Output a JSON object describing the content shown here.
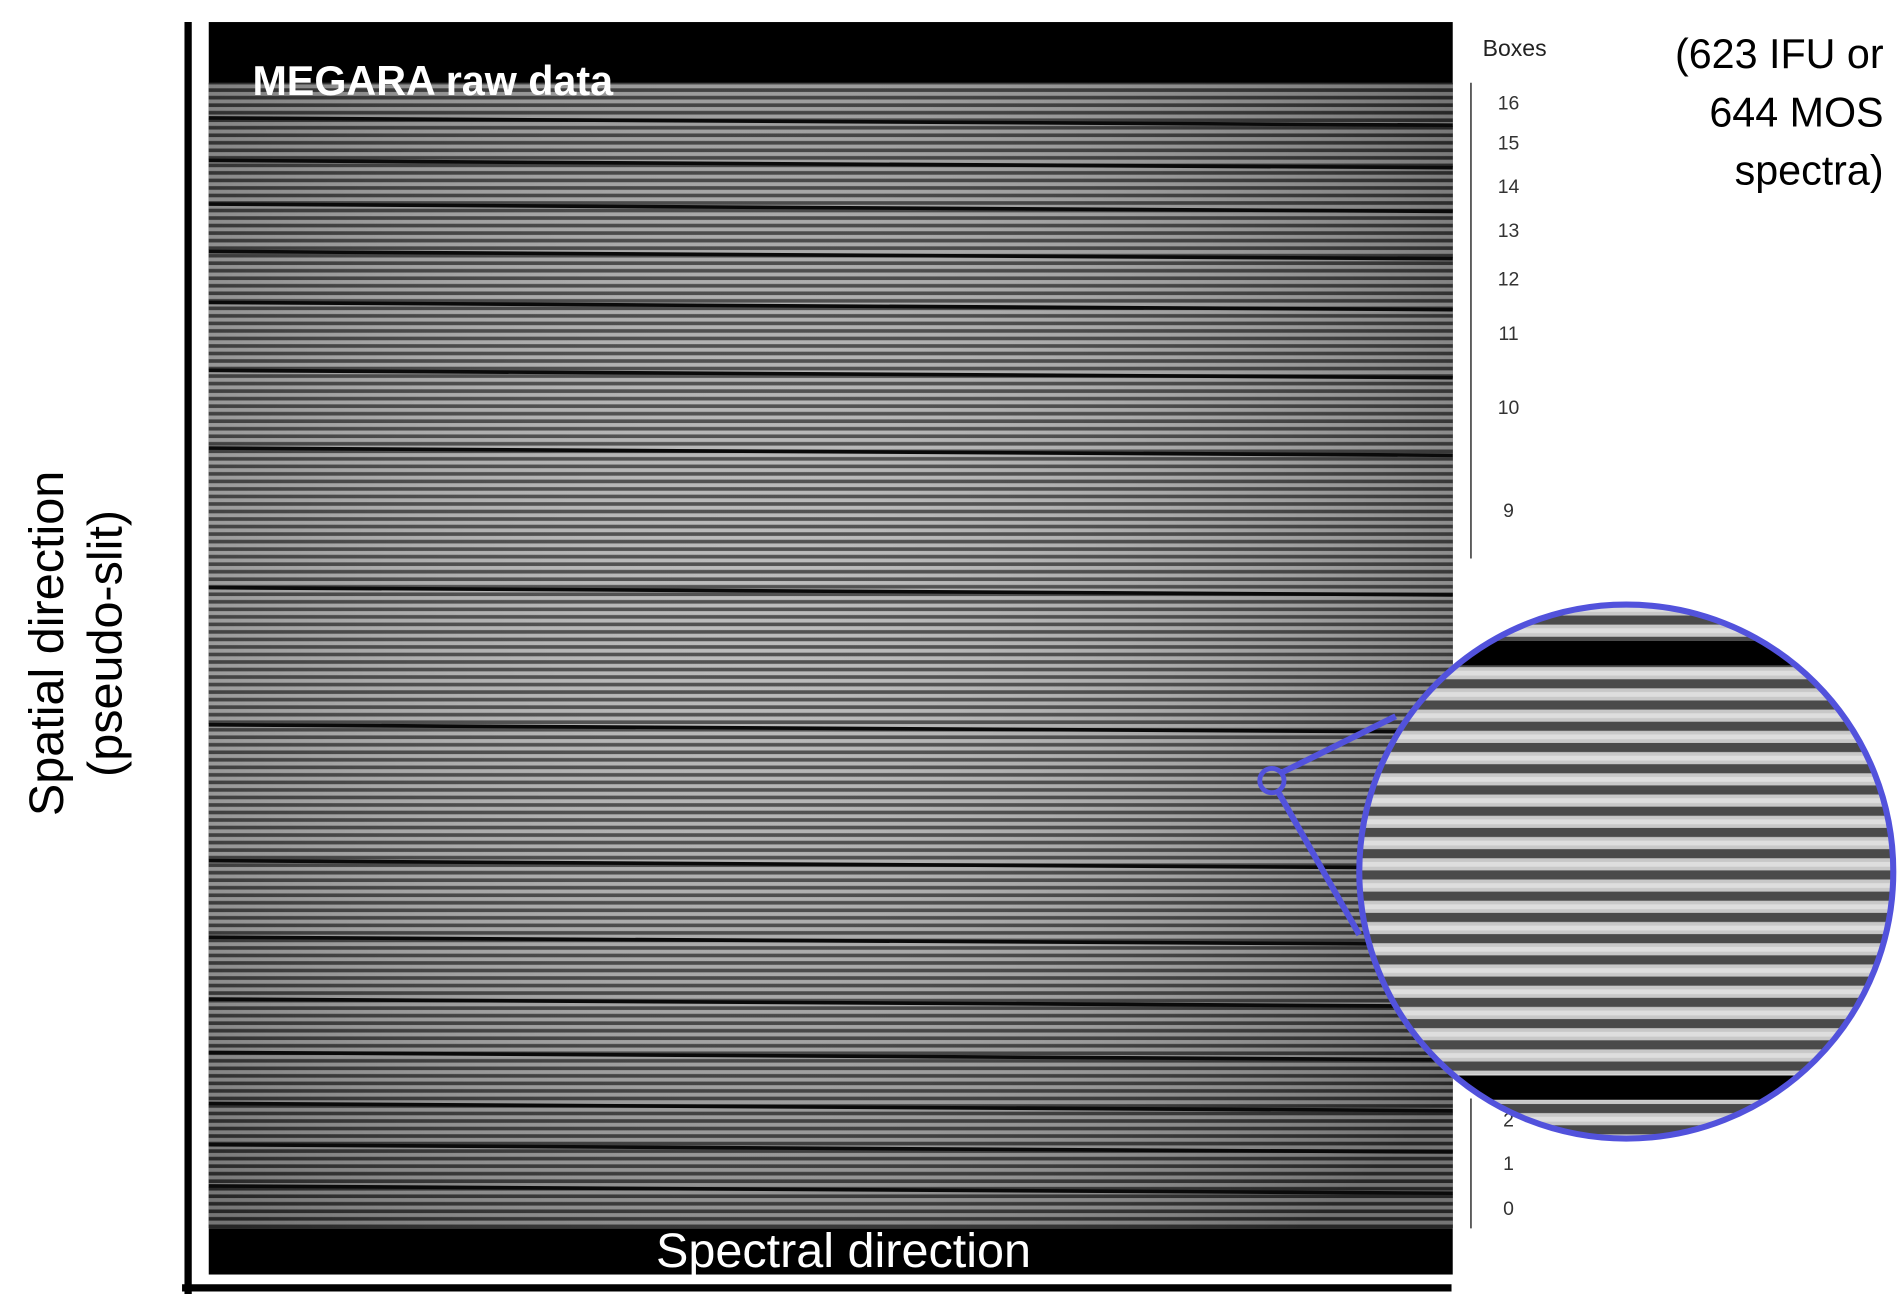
{
  "figure": {
    "title": "MEGARA raw data",
    "x_label": "Spectral direction",
    "y_label": [
      "Spatial direction",
      "(pseudo-slit)"
    ],
    "boxes_header": "Boxes",
    "boxes": [
      16,
      15,
      14,
      13,
      12,
      11,
      10,
      9,
      2,
      1,
      0
    ],
    "note": [
      "(623 IFU or",
      "644 MOS",
      "spectra)"
    ]
  }
}
